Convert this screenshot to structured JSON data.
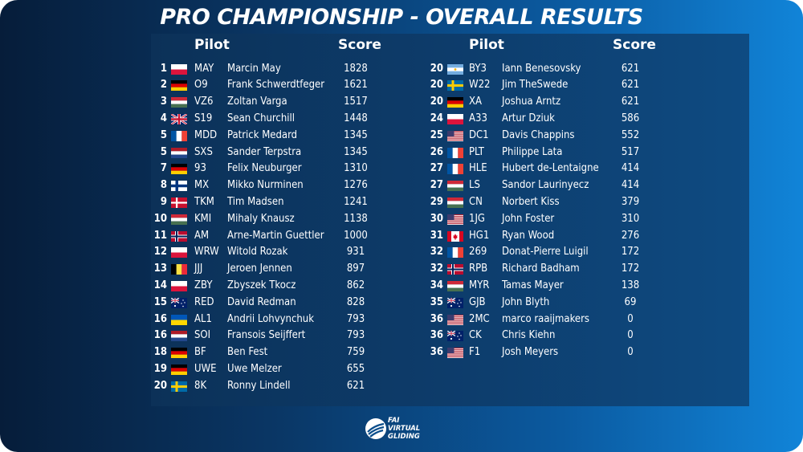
{
  "title": "PRO CHAMPIONSHIP - OVERALL RESULTS",
  "headers": {
    "left_pilot": "Pilot",
    "left_score": "Score",
    "right_pilot": "Pilot",
    "right_score": "Score"
  },
  "colors": {
    "title": "#ffffff",
    "panel": "#0d3c6b",
    "background_left": "#061d3a",
    "background_right": "#1184d8"
  },
  "logo": {
    "line1": "FAI",
    "line2": "VIRTUAL",
    "line3": "GLIDING",
    "icon": "glider-logo-icon"
  },
  "left": [
    {
      "rank": "1",
      "flag": "PL",
      "reg": "MAY",
      "name": "Marcin May",
      "score": "1828"
    },
    {
      "rank": "2",
      "flag": "DE",
      "reg": "O9",
      "name": "Frank Schwerdtfeger",
      "score": "1621"
    },
    {
      "rank": "3",
      "flag": "HU",
      "reg": "VZ6",
      "name": "Zoltan Varga",
      "score": "1517"
    },
    {
      "rank": "4",
      "flag": "GB",
      "reg": "S19",
      "name": "Sean Churchill",
      "score": "1448"
    },
    {
      "rank": "5",
      "flag": "FR",
      "reg": "MDD",
      "name": "Patrick Medard",
      "score": "1345"
    },
    {
      "rank": "5",
      "flag": "NL",
      "reg": "SXS",
      "name": "Sander Terpstra",
      "score": "1345"
    },
    {
      "rank": "7",
      "flag": "DE",
      "reg": "93",
      "name": "Felix Neuburger",
      "score": "1310"
    },
    {
      "rank": "8",
      "flag": "FI",
      "reg": "MX",
      "name": "Mikko Nurminen",
      "score": "1276"
    },
    {
      "rank": "9",
      "flag": "DK",
      "reg": "TKM",
      "name": "Tim Madsen",
      "score": "1241"
    },
    {
      "rank": "10",
      "flag": "HU",
      "reg": "KMI",
      "name": "Mihaly Knausz",
      "score": "1138"
    },
    {
      "rank": "11",
      "flag": "NO",
      "reg": "AM",
      "name": "Arne-Martin Guettler",
      "score": "1000"
    },
    {
      "rank": "12",
      "flag": "PL",
      "reg": "WRW",
      "name": "Witold Rozak",
      "score": "931"
    },
    {
      "rank": "13",
      "flag": "BE",
      "reg": "JJJ",
      "name": "Jeroen Jennen",
      "score": "897"
    },
    {
      "rank": "14",
      "flag": "PL",
      "reg": "ZBY",
      "name": "Zbyszek Tkocz",
      "score": "862"
    },
    {
      "rank": "15",
      "flag": "AU",
      "reg": "RED",
      "name": "David Redman",
      "score": "828"
    },
    {
      "rank": "16",
      "flag": "UA",
      "reg": "AL1",
      "name": "Andrii Lohvynchuk",
      "score": "793"
    },
    {
      "rank": "16",
      "flag": "NL",
      "reg": "SOI",
      "name": "Fransois Seijffert",
      "score": "793"
    },
    {
      "rank": "18",
      "flag": "DE",
      "reg": "BF",
      "name": "Ben Fest",
      "score": "759"
    },
    {
      "rank": "19",
      "flag": "DE",
      "reg": "UWE",
      "name": "Uwe Melzer",
      "score": "655"
    },
    {
      "rank": "20",
      "flag": "SE",
      "reg": "8K",
      "name": "Ronny Lindell",
      "score": "621"
    }
  ],
  "right": [
    {
      "rank": "20",
      "flag": "AR",
      "reg": "BY3",
      "name": "Iann Benesovsky",
      "score": "621"
    },
    {
      "rank": "20",
      "flag": "SE",
      "reg": "W22",
      "name": "Jim TheSwede",
      "score": "621"
    },
    {
      "rank": "20",
      "flag": "DE",
      "reg": "XA",
      "name": "Joshua Arntz",
      "score": "621"
    },
    {
      "rank": "24",
      "flag": "PL",
      "reg": "A33",
      "name": "Artur Dziuk",
      "score": "586"
    },
    {
      "rank": "25",
      "flag": "US",
      "reg": "DC1",
      "name": "Davis Chappins",
      "score": "552"
    },
    {
      "rank": "26",
      "flag": "FR",
      "reg": "PLT",
      "name": "Philippe Lata",
      "score": "517"
    },
    {
      "rank": "27",
      "flag": "FR",
      "reg": "HLE",
      "name": "Hubert de-Lentaigne",
      "score": "414"
    },
    {
      "rank": "27",
      "flag": "HU",
      "reg": "LS",
      "name": "Sandor Laurinyecz",
      "score": "414"
    },
    {
      "rank": "29",
      "flag": "HU",
      "reg": "CN",
      "name": "Norbert Kiss",
      "score": "379"
    },
    {
      "rank": "30",
      "flag": "US",
      "reg": "1JG",
      "name": "John Foster",
      "score": "310"
    },
    {
      "rank": "31",
      "flag": "CA",
      "reg": "HG1",
      "name": "Ryan Wood",
      "score": "276"
    },
    {
      "rank": "32",
      "flag": "FR",
      "reg": "269",
      "name": "Donat-Pierre Luigil",
      "score": "172"
    },
    {
      "rank": "32",
      "flag": "NO",
      "reg": "RPB",
      "name": "Richard Badham",
      "score": "172"
    },
    {
      "rank": "34",
      "flag": "HU",
      "reg": "MYR",
      "name": "Tamas Mayer",
      "score": "138"
    },
    {
      "rank": "35",
      "flag": "AU",
      "reg": "GJB",
      "name": "John Blyth",
      "score": "69"
    },
    {
      "rank": "36",
      "flag": "US",
      "reg": "2MC",
      "name": "marco raaijmakers",
      "score": "0"
    },
    {
      "rank": "36",
      "flag": "AU",
      "reg": "CK",
      "name": "Chris Kiehn",
      "score": "0"
    },
    {
      "rank": "36",
      "flag": "US",
      "reg": "F1",
      "name": "Josh Meyers",
      "score": "0"
    }
  ]
}
